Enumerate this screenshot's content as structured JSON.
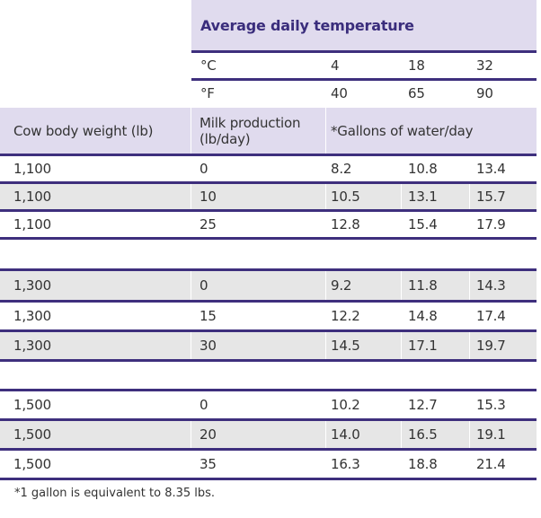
{
  "header": {
    "title": "Average daily temperature",
    "celsius_label": "°C",
    "celsius_values": [
      "4",
      "18",
      "32"
    ],
    "fahrenheit_label": "°F",
    "fahrenheit_values": [
      "40",
      "65",
      "90"
    ]
  },
  "columns": {
    "weight": "Cow body weight (lb)",
    "milk": "Milk production (lb/day)",
    "water": "*Gallons of water/day"
  },
  "groups": [
    {
      "rows": [
        {
          "weight": "1,100",
          "milk": "0",
          "w1": "8.2",
          "w2": "10.8",
          "w3": "13.4"
        },
        {
          "weight": "1,100",
          "milk": "10",
          "w1": "10.5",
          "w2": "13.1",
          "w3": "15.7"
        },
        {
          "weight": "1,100",
          "milk": "25",
          "w1": "12.8",
          "w2": "15.4",
          "w3": "17.9"
        }
      ]
    },
    {
      "rows": [
        {
          "weight": "1,300",
          "milk": "0",
          "w1": "9.2",
          "w2": "11.8",
          "w3": "14.3"
        },
        {
          "weight": "1,300",
          "milk": "15",
          "w1": "12.2",
          "w2": "14.8",
          "w3": "17.4"
        },
        {
          "weight": "1,300",
          "milk": "30",
          "w1": "14.5",
          "w2": "17.1",
          "w3": "19.7"
        }
      ]
    },
    {
      "rows": [
        {
          "weight": "1,500",
          "milk": "0",
          "w1": "10.2",
          "w2": "12.7",
          "w3": "15.3"
        },
        {
          "weight": "1,500",
          "milk": "20",
          "w1": "14.0",
          "w2": "16.5",
          "w3": "19.1"
        },
        {
          "weight": "1,500",
          "milk": "35",
          "w1": "16.3",
          "w2": "18.8",
          "w3": "21.4"
        }
      ]
    }
  ],
  "footnote": "*1 gallon is equivalent to 8.35 lbs.",
  "colors": {
    "accent": "#3e2f7d",
    "title": "#3a2d7c",
    "header_shade": "#e0dbee",
    "row_shade": "#e6e6e6"
  }
}
